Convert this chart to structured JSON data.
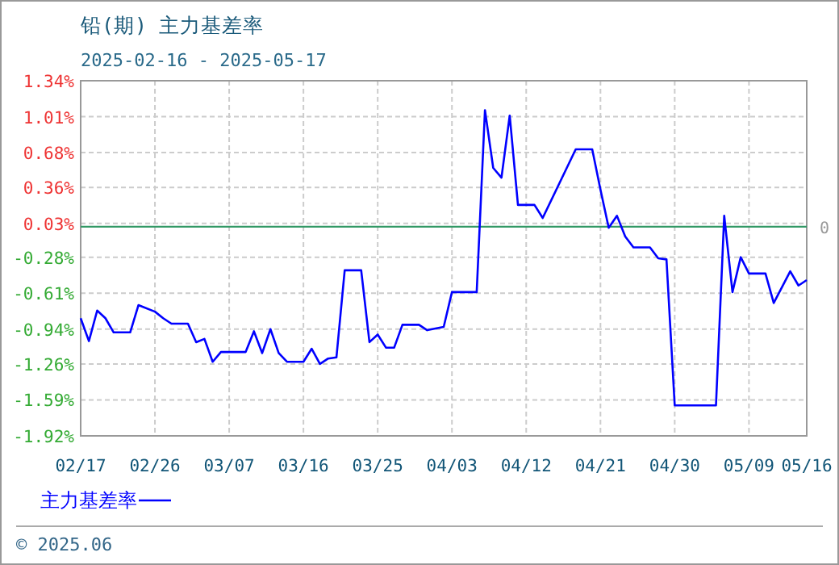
{
  "chart_data": {
    "type": "line",
    "title": "铅(期) 主力基差率",
    "subtitle": "2025-02-16 - 2025-05-17",
    "annotations": [
      "© 2025.06"
    ],
    "x": [
      "2025-02-17",
      "2025-02-18",
      "2025-02-19",
      "2025-02-20",
      "2025-02-21",
      "2025-02-23",
      "2025-02-24",
      "2025-02-26",
      "2025-02-27",
      "2025-02-28",
      "2025-03-02",
      "2025-03-03",
      "2025-03-04",
      "2025-03-05",
      "2025-03-06",
      "2025-03-09",
      "2025-03-10",
      "2025-03-11",
      "2025-03-12",
      "2025-03-13",
      "2025-03-14",
      "2025-03-16",
      "2025-03-17",
      "2025-03-18",
      "2025-03-19",
      "2025-03-20",
      "2025-03-21",
      "2025-03-23",
      "2025-03-24",
      "2025-03-25",
      "2025-03-26",
      "2025-03-27",
      "2025-03-28",
      "2025-03-30",
      "2025-03-31",
      "2025-04-02",
      "2025-04-03",
      "2025-04-06",
      "2025-04-07",
      "2025-04-08",
      "2025-04-09",
      "2025-04-10",
      "2025-04-11",
      "2025-04-13",
      "2025-04-14",
      "2025-04-18",
      "2025-04-20",
      "2025-04-21",
      "2025-04-22",
      "2025-04-23",
      "2025-04-24",
      "2025-04-25",
      "2025-04-27",
      "2025-04-28",
      "2025-04-29",
      "2025-04-30",
      "2025-05-05",
      "2025-05-06",
      "2025-05-07",
      "2025-05-08",
      "2025-05-09",
      "2025-05-11",
      "2025-05-12",
      "2025-05-14",
      "2025-05-15",
      "2025-05-16"
    ],
    "series": [
      {
        "name": "主力基差率",
        "color": "#0000ff",
        "values": [
          -0.84,
          -1.05,
          -0.77,
          -0.84,
          -0.97,
          -0.97,
          -0.72,
          -0.78,
          -0.84,
          -0.89,
          -0.89,
          -1.06,
          -1.03,
          -1.24,
          -1.15,
          -1.15,
          -0.96,
          -1.16,
          -0.94,
          -1.16,
          -1.24,
          -1.24,
          -1.12,
          -1.26,
          -1.21,
          -1.2,
          -0.4,
          -0.4,
          -1.06,
          -0.99,
          -1.11,
          -1.11,
          -0.9,
          -0.9,
          -0.95,
          -0.92,
          -0.6,
          -0.6,
          1.07,
          0.54,
          0.45,
          1.02,
          0.2,
          0.2,
          0.08,
          0.71,
          0.71,
          0.34,
          -0.01,
          0.1,
          -0.09,
          -0.19,
          -0.19,
          -0.29,
          -0.3,
          -1.64,
          -1.64,
          0.1,
          -0.6,
          -0.28,
          -0.43,
          -0.43,
          -0.7,
          -0.41,
          -0.54,
          -0.49
        ]
      }
    ],
    "xlim": [
      "2025-02-17",
      "2025-05-16"
    ],
    "xticks": [
      {
        "value": "2025-02-17",
        "label": "02/17"
      },
      {
        "value": "2025-02-26",
        "label": "02/26"
      },
      {
        "value": "2025-03-07",
        "label": "03/07"
      },
      {
        "value": "2025-03-16",
        "label": "03/16"
      },
      {
        "value": "2025-03-25",
        "label": "03/25"
      },
      {
        "value": "2025-04-03",
        "label": "04/03"
      },
      {
        "value": "2025-04-12",
        "label": "04/12"
      },
      {
        "value": "2025-04-21",
        "label": "04/21"
      },
      {
        "value": "2025-04-30",
        "label": "04/30"
      },
      {
        "value": "2025-05-09",
        "label": "05/09"
      },
      {
        "value": "2025-05-16",
        "label": "05/16"
      }
    ],
    "ylim": [
      -1.92,
      1.34
    ],
    "yticks": [
      {
        "value": 1.34,
        "label": "1.34%"
      },
      {
        "value": 1.01,
        "label": "1.01%"
      },
      {
        "value": 0.68,
        "label": "0.68%"
      },
      {
        "value": 0.36,
        "label": "0.36%"
      },
      {
        "value": 0.03,
        "label": "0.03%"
      },
      {
        "value": -0.28,
        "label": "-0.28%"
      },
      {
        "value": -0.61,
        "label": "-0.61%"
      },
      {
        "value": -0.94,
        "label": "-0.94%"
      },
      {
        "value": -1.26,
        "label": "-1.26%"
      },
      {
        "value": -1.59,
        "label": "-1.59%"
      },
      {
        "value": -1.92,
        "label": "-1.92%"
      }
    ],
    "ref_lines": [
      {
        "axis": "y",
        "value": 0,
        "label": "0",
        "color": "#339966"
      }
    ],
    "grid": true,
    "legend": "bottom left",
    "marker": "none",
    "line_style": "solid"
  }
}
